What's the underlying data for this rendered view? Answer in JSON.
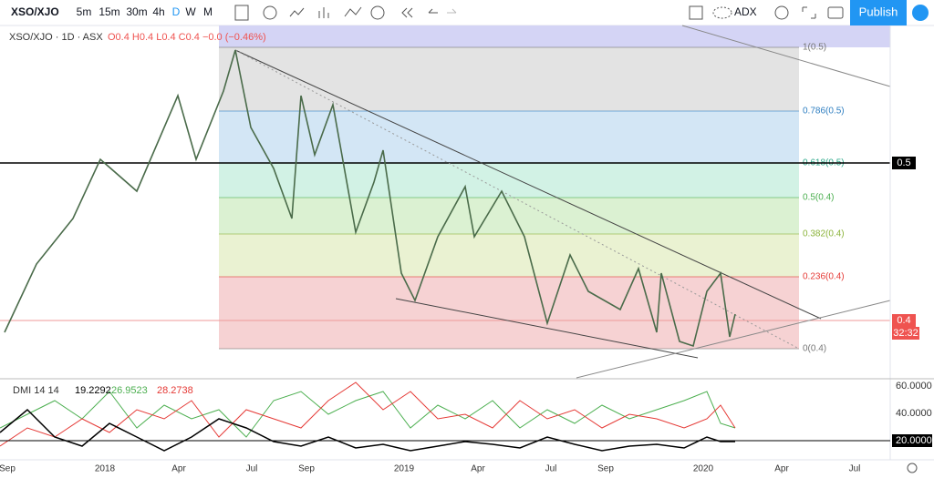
{
  "toolbar": {
    "symbol": "XSO/XJO",
    "intervals": [
      "5m",
      "15m",
      "30m",
      "4h",
      "D",
      "W",
      "M"
    ],
    "indicator": "ADX",
    "publish": "Publish"
  },
  "legend": {
    "title": "XSO/XJO · 1D · ASX",
    "ohlc": "O0.4 H0.4 L0.4 C0.4 −0.0 (−0.46%)"
  },
  "fib_levels": [
    "1(0.5)",
    "0.786(0.5)",
    "0.618(0.5)",
    "0.5(0.4)",
    "0.382(0.4)",
    "0.236(0.4)",
    "0(0.4)"
  ],
  "price_axis": {
    "level": "0.5",
    "last": "0.4",
    "countdown": "32:32"
  },
  "indicator": {
    "name": "DMI 14 14",
    "values": [
      "19.2292",
      "26.9523",
      "28.2738"
    ],
    "axis": [
      "60.0000",
      "40.0000",
      "20.0000"
    ]
  },
  "time_axis": [
    "Sep",
    "2018",
    "Apr",
    "Jul",
    "Sep",
    "2019",
    "Apr",
    "Jul",
    "Sep",
    "2020",
    "Apr",
    "Jul"
  ]
}
